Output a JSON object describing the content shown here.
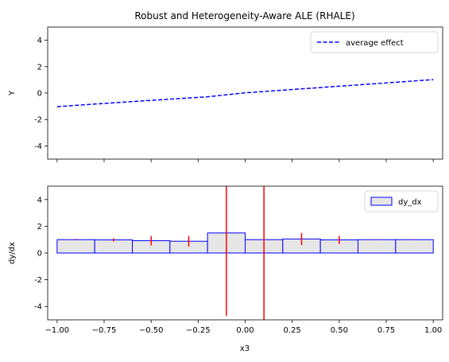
{
  "chart_data": [
    {
      "type": "line",
      "title": "Robust and Heterogeneity-Aware ALE (RHALE)",
      "xlabel": "",
      "ylabel": "Y",
      "xlim": [
        -1.05,
        1.05
      ],
      "ylim": [
        -5,
        5
      ],
      "yticks": [
        -4,
        -2,
        0,
        2,
        4
      ],
      "xticks": [
        -1.0,
        -0.75,
        -0.5,
        -0.25,
        0.0,
        0.25,
        0.5,
        0.75,
        1.0
      ],
      "show_xtick_labels": false,
      "legend": {
        "placement": "top-right",
        "entries": [
          "average effect"
        ]
      },
      "series": [
        {
          "name": "average effect",
          "style": "dashed",
          "color": "#0000ff",
          "x": [
            -1.0,
            -0.8,
            -0.6,
            -0.4,
            -0.2,
            0.0,
            0.2,
            0.4,
            0.6,
            0.8,
            1.0
          ],
          "y": [
            -1.03,
            -0.83,
            -0.64,
            -0.46,
            -0.28,
            0.02,
            0.22,
            0.42,
            0.62,
            0.82,
            1.02
          ]
        }
      ]
    },
    {
      "type": "bar",
      "xlabel": "x3",
      "ylabel": "dy/dx",
      "xlim": [
        -1.05,
        1.05
      ],
      "ylim": [
        -5,
        5
      ],
      "yticks": [
        -4,
        -2,
        0,
        2,
        4
      ],
      "xticks": [
        -1.0,
        -0.75,
        -0.5,
        -0.25,
        0.0,
        0.25,
        0.5,
        0.75,
        1.0
      ],
      "xtick_labels": [
        "−1.00",
        "−0.75",
        "−0.50",
        "−0.25",
        "0.00",
        "0.25",
        "0.50",
        "0.75",
        "1.00"
      ],
      "legend": {
        "placement": "top-right",
        "entries": [
          "dy_dx"
        ]
      },
      "bar_fill": "#e6e6e6",
      "bar_edge": "#0000ff",
      "error_color": "#ff0000",
      "series": [
        {
          "name": "dy_dx",
          "bins": [
            {
              "x0": -1.0,
              "x1": -0.8,
              "value": 1.0,
              "std": 0.05
            },
            {
              "x0": -0.8,
              "x1": -0.6,
              "value": 0.98,
              "std": 0.12
            },
            {
              "x0": -0.6,
              "x1": -0.4,
              "value": 0.92,
              "std": 0.35
            },
            {
              "x0": -0.4,
              "x1": -0.2,
              "value": 0.88,
              "std": 0.4
            },
            {
              "x0": -0.2,
              "x1": 0.0,
              "value": 1.5,
              "std": 6.2
            },
            {
              "x0": 0.0,
              "x1": 0.2,
              "value": 1.0,
              "std": 6.0
            },
            {
              "x0": 0.2,
              "x1": 0.4,
              "value": 1.05,
              "std": 0.45
            },
            {
              "x0": 0.4,
              "x1": 0.6,
              "value": 0.98,
              "std": 0.3
            },
            {
              "x0": 0.6,
              "x1": 0.8,
              "value": 1.0,
              "std": 0.02
            },
            {
              "x0": 0.8,
              "x1": 1.0,
              "value": 1.0,
              "std": 0.02
            }
          ]
        }
      ]
    }
  ]
}
